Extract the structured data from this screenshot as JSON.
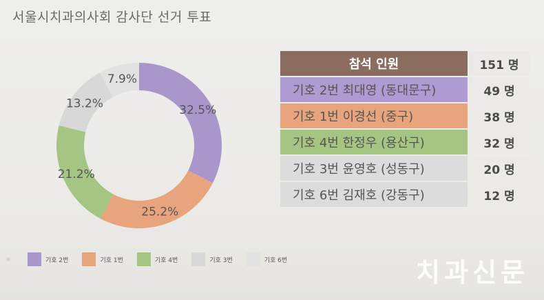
{
  "title": "서울시치과의사회 감사단 선거 투표",
  "watermark": "치과신문",
  "chart_data": {
    "type": "pie",
    "title": "",
    "categories": [
      "기호 2번",
      "기호 1번",
      "기호 4번",
      "기호 3번",
      "기호 6번"
    ],
    "values": [
      32.5,
      25.2,
      21.2,
      13.2,
      7.9
    ],
    "value_labels": [
      "32.5%",
      "25.2%",
      "21.2%",
      "13.2%",
      "7.9%"
    ],
    "colors": [
      "#a997cc",
      "#e8a47c",
      "#a5c582",
      "#d8d8d8",
      "#e2e2e2"
    ],
    "legend": "bottom",
    "donut": true
  },
  "table": {
    "header": {
      "label": "참석 인원",
      "count": "151 명",
      "color": "#8a6d5e"
    },
    "rows": [
      {
        "label": "기호 2번 최대영 (동대문구)",
        "count": "49 명",
        "color": "#ad9bd1"
      },
      {
        "label": "기호 1번 이경선 (중구)",
        "count": "38 명",
        "color": "#e8a47c"
      },
      {
        "label": "기호 4번 한정우 (용산구)",
        "count": "32 명",
        "color": "#a5c582"
      },
      {
        "label": "기호 3번 윤영호 (성동구)",
        "count": "20 명",
        "color": "#dcdcdc"
      },
      {
        "label": "기호 6번 김재호 (강동구)",
        "count": "12 명",
        "color": "#dcdcdc"
      }
    ]
  }
}
